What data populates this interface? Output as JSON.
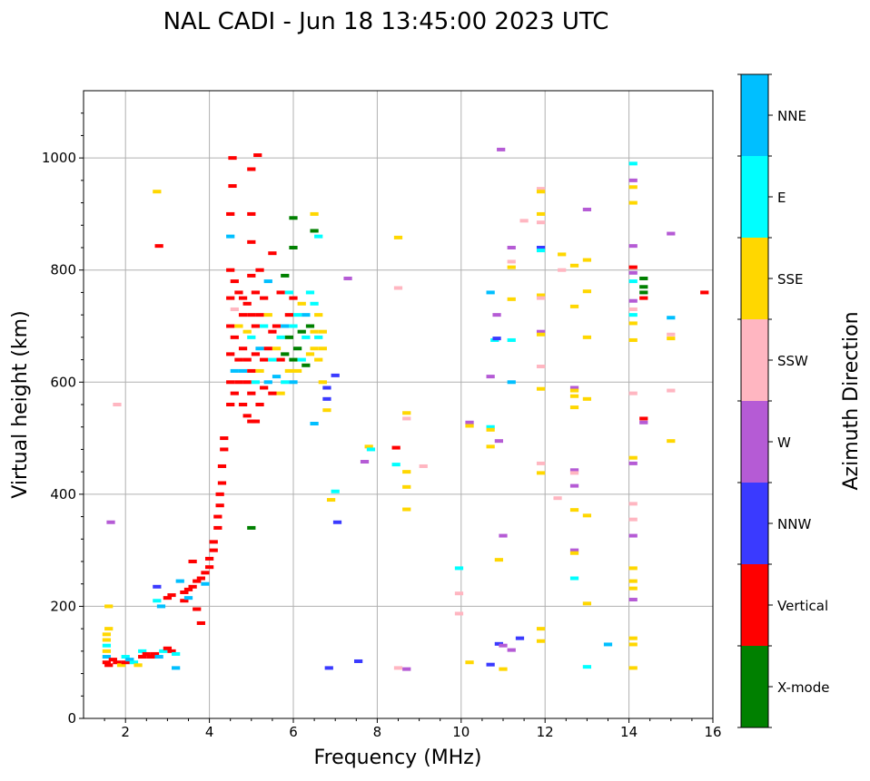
{
  "chart_data": {
    "type": "scatter",
    "title": "NAL CADI - Jun 18 13:45:00 2023 UTC",
    "xlabel": "Frequency (MHz)",
    "ylabel": "Virtual height (km)",
    "xlim": [
      1,
      16
    ],
    "ylim": [
      0,
      1120
    ],
    "xticks": [
      2,
      4,
      6,
      8,
      10,
      12,
      14,
      16
    ],
    "yticks": [
      0,
      200,
      400,
      600,
      800,
      1000
    ],
    "grid": true,
    "colorbar": {
      "label": "Azimuth Direction",
      "categories": [
        "X-mode",
        "Vertical",
        "NNW",
        "W",
        "SSW",
        "SSE",
        "E",
        "NNE"
      ],
      "colors": [
        "#008000",
        "#ff0000",
        "#3a3aff",
        "#b55bd5",
        "#ffb6c1",
        "#ffd700",
        "#00ffff",
        "#00bfff"
      ]
    },
    "point_fields": [
      "frequency_mhz",
      "height_km",
      "category_index"
    ],
    "points": [
      [
        1.55,
        100,
        1
      ],
      [
        1.55,
        110,
        7
      ],
      [
        1.55,
        120,
        5
      ],
      [
        1.55,
        130,
        6
      ],
      [
        1.55,
        140,
        5
      ],
      [
        1.55,
        150,
        5
      ],
      [
        1.6,
        160,
        5
      ],
      [
        1.6,
        200,
        5
      ],
      [
        1.6,
        95,
        1
      ],
      [
        1.7,
        105,
        1
      ],
      [
        1.8,
        100,
        1
      ],
      [
        1.9,
        95,
        5
      ],
      [
        2.0,
        100,
        1
      ],
      [
        2.0,
        110,
        6
      ],
      [
        2.1,
        105,
        7
      ],
      [
        2.2,
        100,
        6
      ],
      [
        2.3,
        95,
        5
      ],
      [
        2.4,
        110,
        1
      ],
      [
        2.4,
        120,
        6
      ],
      [
        2.5,
        115,
        1
      ],
      [
        2.6,
        110,
        1
      ],
      [
        2.7,
        115,
        1
      ],
      [
        2.8,
        110,
        7
      ],
      [
        2.9,
        120,
        6
      ],
      [
        3.0,
        125,
        1
      ],
      [
        3.1,
        120,
        1
      ],
      [
        3.2,
        115,
        6
      ],
      [
        3.2,
        90,
        7
      ],
      [
        2.75,
        235,
        2
      ],
      [
        2.75,
        210,
        6
      ],
      [
        2.85,
        200,
        7
      ],
      [
        3.0,
        215,
        1
      ],
      [
        3.1,
        220,
        1
      ],
      [
        3.3,
        245,
        7
      ],
      [
        3.4,
        210,
        1
      ],
      [
        3.4,
        225,
        1
      ],
      [
        3.5,
        230,
        1
      ],
      [
        3.5,
        215,
        7
      ],
      [
        3.6,
        235,
        1
      ],
      [
        3.6,
        280,
        1
      ],
      [
        3.7,
        245,
        1
      ],
      [
        3.7,
        195,
        1
      ],
      [
        3.8,
        250,
        1
      ],
      [
        3.8,
        170,
        1
      ],
      [
        3.9,
        260,
        1
      ],
      [
        3.9,
        240,
        7
      ],
      [
        4.0,
        270,
        1
      ],
      [
        4.0,
        285,
        1
      ],
      [
        4.1,
        300,
        1
      ],
      [
        4.1,
        315,
        1
      ],
      [
        4.2,
        340,
        1
      ],
      [
        4.2,
        360,
        1
      ],
      [
        4.25,
        380,
        1
      ],
      [
        4.25,
        400,
        1
      ],
      [
        4.3,
        420,
        1
      ],
      [
        4.3,
        450,
        1
      ],
      [
        4.35,
        480,
        1
      ],
      [
        4.35,
        500,
        1
      ],
      [
        1.65,
        350,
        3
      ],
      [
        1.8,
        560,
        4
      ],
      [
        2.75,
        940,
        5
      ],
      [
        2.8,
        843,
        1
      ],
      [
        4.5,
        560,
        1
      ],
      [
        4.5,
        600,
        1
      ],
      [
        4.5,
        650,
        1
      ],
      [
        4.5,
        700,
        1
      ],
      [
        4.5,
        750,
        1
      ],
      [
        4.5,
        800,
        1
      ],
      [
        4.5,
        860,
        7
      ],
      [
        4.5,
        900,
        1
      ],
      [
        4.55,
        950,
        1
      ],
      [
        4.55,
        1000,
        1
      ],
      [
        4.6,
        580,
        1
      ],
      [
        4.6,
        620,
        7
      ],
      [
        4.6,
        680,
        1
      ],
      [
        4.6,
        730,
        4
      ],
      [
        4.6,
        780,
        1
      ],
      [
        4.7,
        600,
        1
      ],
      [
        4.7,
        640,
        1
      ],
      [
        4.7,
        700,
        5
      ],
      [
        4.7,
        760,
        1
      ],
      [
        4.8,
        560,
        1
      ],
      [
        4.8,
        620,
        7
      ],
      [
        4.8,
        660,
        1
      ],
      [
        4.8,
        720,
        1
      ],
      [
        4.8,
        750,
        1
      ],
      [
        4.9,
        540,
        1
      ],
      [
        4.9,
        600,
        1
      ],
      [
        4.9,
        640,
        1
      ],
      [
        4.9,
        690,
        5
      ],
      [
        4.9,
        740,
        1
      ],
      [
        5.0,
        530,
        1
      ],
      [
        5.0,
        580,
        1
      ],
      [
        5.0,
        620,
        1
      ],
      [
        5.0,
        680,
        6
      ],
      [
        5.0,
        720,
        1
      ],
      [
        5.0,
        790,
        1
      ],
      [
        5.0,
        850,
        1
      ],
      [
        5.0,
        900,
        1
      ],
      [
        5.0,
        980,
        1
      ],
      [
        5.0,
        340,
        0
      ],
      [
        5.1,
        530,
        1
      ],
      [
        5.1,
        600,
        6
      ],
      [
        5.1,
        650,
        1
      ],
      [
        5.1,
        700,
        1
      ],
      [
        5.1,
        760,
        1
      ],
      [
        5.15,
        1005,
        1
      ],
      [
        5.2,
        560,
        1
      ],
      [
        5.2,
        620,
        5
      ],
      [
        5.2,
        660,
        7
      ],
      [
        5.2,
        720,
        1
      ],
      [
        5.2,
        800,
        1
      ],
      [
        5.3,
        590,
        1
      ],
      [
        5.3,
        640,
        1
      ],
      [
        5.3,
        700,
        6
      ],
      [
        5.3,
        750,
        1
      ],
      [
        5.4,
        600,
        7
      ],
      [
        5.4,
        660,
        1
      ],
      [
        5.4,
        720,
        5
      ],
      [
        5.4,
        780,
        7
      ],
      [
        5.5,
        580,
        1
      ],
      [
        5.5,
        640,
        6
      ],
      [
        5.5,
        690,
        1
      ],
      [
        5.5,
        830,
        1
      ],
      [
        5.6,
        610,
        7
      ],
      [
        5.6,
        660,
        5
      ],
      [
        5.6,
        700,
        1
      ],
      [
        5.7,
        580,
        5
      ],
      [
        5.7,
        640,
        1
      ],
      [
        5.7,
        680,
        6
      ],
      [
        5.7,
        760,
        1
      ],
      [
        5.8,
        600,
        6
      ],
      [
        5.8,
        650,
        0
      ],
      [
        5.8,
        700,
        7
      ],
      [
        5.8,
        790,
        0
      ],
      [
        5.9,
        620,
        5
      ],
      [
        5.9,
        680,
        0
      ],
      [
        5.9,
        720,
        1
      ],
      [
        5.9,
        760,
        6
      ],
      [
        6.0,
        600,
        7
      ],
      [
        6.0,
        640,
        0
      ],
      [
        6.0,
        700,
        6
      ],
      [
        6.0,
        750,
        1
      ],
      [
        6.0,
        840,
        0
      ],
      [
        6.0,
        893,
        0
      ],
      [
        6.1,
        620,
        5
      ],
      [
        6.1,
        660,
        0
      ],
      [
        6.1,
        720,
        6
      ],
      [
        6.2,
        640,
        6
      ],
      [
        6.2,
        690,
        0
      ],
      [
        6.2,
        740,
        5
      ],
      [
        6.3,
        630,
        0
      ],
      [
        6.3,
        680,
        6
      ],
      [
        6.3,
        720,
        7
      ],
      [
        6.4,
        650,
        5
      ],
      [
        6.4,
        700,
        0
      ],
      [
        6.4,
        760,
        6
      ],
      [
        6.5,
        660,
        5
      ],
      [
        6.5,
        690,
        5
      ],
      [
        6.5,
        740,
        6
      ],
      [
        6.5,
        870,
        0
      ],
      [
        6.5,
        900,
        5
      ],
      [
        6.5,
        526,
        7
      ],
      [
        6.6,
        640,
        5
      ],
      [
        6.6,
        680,
        6
      ],
      [
        6.6,
        720,
        5
      ],
      [
        6.6,
        860,
        6
      ],
      [
        6.7,
        660,
        5
      ],
      [
        6.7,
        690,
        5
      ],
      [
        6.7,
        600,
        5
      ],
      [
        6.8,
        590,
        2
      ],
      [
        6.8,
        570,
        2
      ],
      [
        6.8,
        550,
        5
      ],
      [
        7.0,
        612,
        2
      ],
      [
        7.0,
        405,
        6
      ],
      [
        7.05,
        350,
        2
      ],
      [
        6.9,
        390,
        5
      ],
      [
        6.85,
        90,
        2
      ],
      [
        7.3,
        785,
        3
      ],
      [
        7.7,
        458,
        3
      ],
      [
        7.8,
        485,
        5
      ],
      [
        7.85,
        480,
        6
      ],
      [
        7.55,
        102,
        2
      ],
      [
        8.45,
        483,
        1
      ],
      [
        8.45,
        453,
        6
      ],
      [
        8.5,
        858,
        5
      ],
      [
        8.5,
        768,
        4
      ],
      [
        8.5,
        90,
        4
      ],
      [
        8.7,
        545,
        5
      ],
      [
        8.7,
        535,
        4
      ],
      [
        8.7,
        440,
        5
      ],
      [
        8.7,
        413,
        5
      ],
      [
        8.7,
        373,
        5
      ],
      [
        8.7,
        88,
        3
      ],
      [
        9.1,
        450,
        4
      ],
      [
        9.95,
        268,
        6
      ],
      [
        9.95,
        223,
        4
      ],
      [
        9.95,
        187,
        4
      ],
      [
        10.2,
        528,
        3
      ],
      [
        10.2,
        522,
        5
      ],
      [
        10.2,
        100,
        5
      ],
      [
        10.7,
        520,
        6
      ],
      [
        10.7,
        515,
        5
      ],
      [
        10.7,
        485,
        5
      ],
      [
        10.7,
        96,
        2
      ],
      [
        10.7,
        610,
        3
      ],
      [
        10.7,
        760,
        7
      ],
      [
        10.8,
        675,
        6
      ],
      [
        10.85,
        678,
        2
      ],
      [
        10.85,
        720,
        3
      ],
      [
        10.9,
        495,
        3
      ],
      [
        10.9,
        283,
        5
      ],
      [
        10.9,
        133,
        2
      ],
      [
        10.95,
        1015,
        3
      ],
      [
        11.0,
        130,
        3
      ],
      [
        11.0,
        326,
        3
      ],
      [
        11.0,
        88,
        5
      ],
      [
        11.2,
        840,
        3
      ],
      [
        11.2,
        815,
        4
      ],
      [
        11.2,
        805,
        5
      ],
      [
        11.2,
        748,
        5
      ],
      [
        11.2,
        675,
        6
      ],
      [
        11.2,
        600,
        7
      ],
      [
        11.2,
        122,
        3
      ],
      [
        11.4,
        143,
        2
      ],
      [
        11.5,
        888,
        4
      ],
      [
        11.9,
        945,
        4
      ],
      [
        11.9,
        940,
        5
      ],
      [
        11.9,
        900,
        5
      ],
      [
        11.9,
        885,
        4
      ],
      [
        11.9,
        840,
        2
      ],
      [
        11.9,
        835,
        6
      ],
      [
        11.9,
        755,
        5
      ],
      [
        11.9,
        750,
        4
      ],
      [
        11.9,
        690,
        3
      ],
      [
        11.9,
        685,
        5
      ],
      [
        11.9,
        628,
        4
      ],
      [
        11.9,
        588,
        5
      ],
      [
        11.9,
        455,
        4
      ],
      [
        11.9,
        438,
        5
      ],
      [
        11.9,
        160,
        5
      ],
      [
        11.9,
        138,
        5
      ],
      [
        12.4,
        828,
        5
      ],
      [
        12.4,
        800,
        4
      ],
      [
        12.3,
        393,
        4
      ],
      [
        12.7,
        808,
        5
      ],
      [
        12.7,
        735,
        5
      ],
      [
        12.7,
        590,
        3
      ],
      [
        12.7,
        585,
        5
      ],
      [
        12.7,
        575,
        5
      ],
      [
        12.7,
        555,
        5
      ],
      [
        12.7,
        443,
        3
      ],
      [
        12.7,
        438,
        4
      ],
      [
        12.7,
        415,
        3
      ],
      [
        12.7,
        372,
        5
      ],
      [
        12.7,
        300,
        3
      ],
      [
        12.7,
        295,
        5
      ],
      [
        12.7,
        250,
        6
      ],
      [
        13.0,
        908,
        3
      ],
      [
        13.0,
        818,
        5
      ],
      [
        13.0,
        762,
        5
      ],
      [
        13.0,
        680,
        5
      ],
      [
        13.0,
        570,
        5
      ],
      [
        13.0,
        362,
        5
      ],
      [
        13.0,
        205,
        5
      ],
      [
        13.0,
        92,
        6
      ],
      [
        13.5,
        132,
        7
      ],
      [
        14.1,
        990,
        6
      ],
      [
        14.1,
        960,
        3
      ],
      [
        14.1,
        948,
        5
      ],
      [
        14.1,
        920,
        5
      ],
      [
        14.1,
        843,
        3
      ],
      [
        14.1,
        805,
        1
      ],
      [
        14.1,
        795,
        3
      ],
      [
        14.1,
        780,
        6
      ],
      [
        14.1,
        745,
        3
      ],
      [
        14.1,
        730,
        4
      ],
      [
        14.1,
        720,
        6
      ],
      [
        14.1,
        705,
        5
      ],
      [
        14.1,
        675,
        5
      ],
      [
        14.1,
        580,
        4
      ],
      [
        14.1,
        465,
        5
      ],
      [
        14.1,
        455,
        3
      ],
      [
        14.1,
        383,
        4
      ],
      [
        14.1,
        355,
        4
      ],
      [
        14.1,
        326,
        3
      ],
      [
        14.1,
        268,
        5
      ],
      [
        14.1,
        245,
        5
      ],
      [
        14.1,
        232,
        5
      ],
      [
        14.1,
        212,
        3
      ],
      [
        14.1,
        143,
        5
      ],
      [
        14.1,
        132,
        5
      ],
      [
        14.1,
        90,
        5
      ],
      [
        14.35,
        785,
        0
      ],
      [
        14.35,
        770,
        0
      ],
      [
        14.35,
        760,
        0
      ],
      [
        14.35,
        750,
        1
      ],
      [
        14.35,
        535,
        1
      ],
      [
        14.35,
        528,
        3
      ],
      [
        15.0,
        865,
        3
      ],
      [
        15.0,
        715,
        7
      ],
      [
        15.0,
        685,
        4
      ],
      [
        15.0,
        678,
        5
      ],
      [
        15.0,
        585,
        4
      ],
      [
        15.0,
        495,
        5
      ],
      [
        15.8,
        760,
        1
      ]
    ]
  }
}
